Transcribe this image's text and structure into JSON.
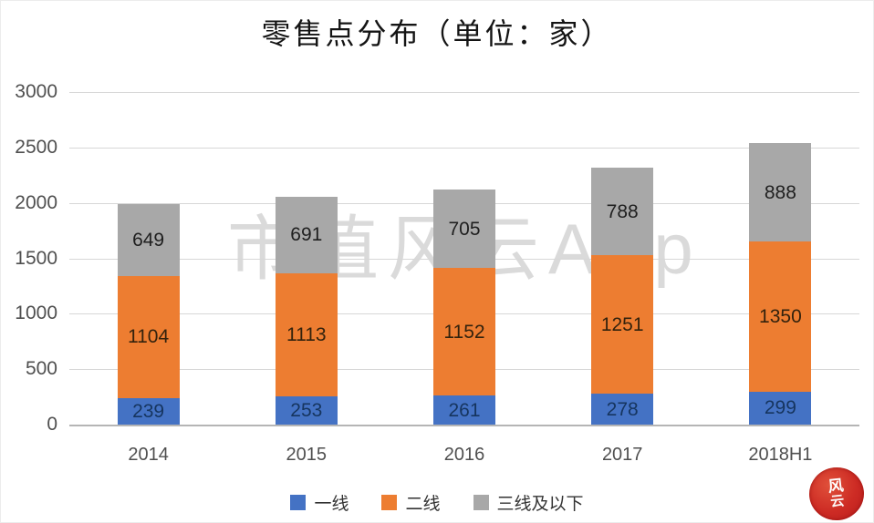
{
  "watermark": "市值风云App",
  "seal": {
    "line1": "风",
    "line2": "云"
  },
  "chart_data": {
    "type": "bar",
    "stacked": true,
    "title": "零售点分布（单位：家）",
    "unit": "家",
    "categories": [
      "2014",
      "2015",
      "2016",
      "2017",
      "2018H1"
    ],
    "series": [
      {
        "name": "一线",
        "color": "#4472C4",
        "label_color": "#16355f",
        "values": [
          239,
          253,
          261,
          278,
          299
        ]
      },
      {
        "name": "二线",
        "color": "#ED7D31",
        "label_color": "#33220d",
        "values": [
          1104,
          1113,
          1152,
          1251,
          1350
        ]
      },
      {
        "name": "三线及以下",
        "color": "#A8A8A8",
        "label_color": "#1f1f1f",
        "values": [
          649,
          691,
          705,
          788,
          888
        ]
      }
    ],
    "totals": [
      1992,
      2057,
      2118,
      2317,
      2537
    ],
    "ylim": [
      0,
      3000
    ],
    "yticks": [
      0,
      500,
      1000,
      1500,
      2000,
      2500,
      3000
    ],
    "grid": true,
    "legend_position": "bottom",
    "colors": {
      "grid": "#d7d7d7",
      "baseline": "#b5b5b5",
      "axis_text": "#4f4f4f"
    }
  }
}
